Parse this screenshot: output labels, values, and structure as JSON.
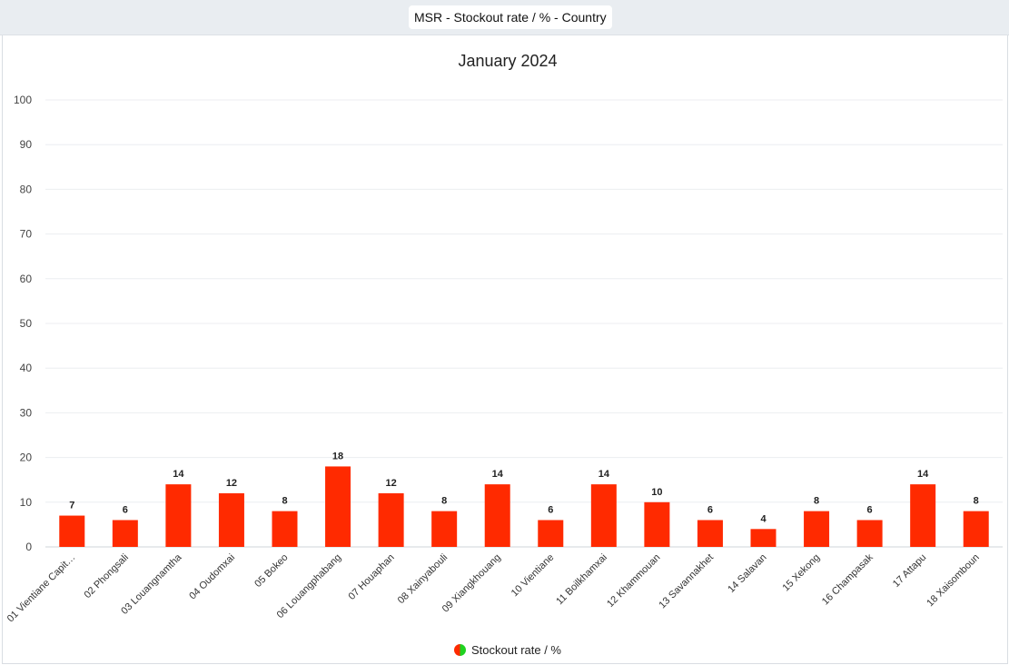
{
  "header": {
    "title": "MSR - Stockout rate / % - Country"
  },
  "legend": {
    "label": "Stockout rate / %"
  },
  "chart_data": {
    "type": "bar",
    "title": "January 2024",
    "xlabel": "",
    "ylabel": "",
    "ylim": [
      0,
      100
    ],
    "yticks": [
      0,
      10,
      20,
      30,
      40,
      50,
      60,
      70,
      80,
      90,
      100
    ],
    "grid": true,
    "legend_position": "bottom",
    "bar_color": "#ff2a00",
    "categories": [
      "01 Vientiane Capit…",
      "02 Phongsali",
      "03 Louangnamtha",
      "04 Oudomxai",
      "05 Bokeo",
      "06 Louangphabang",
      "07 Houaphan",
      "08 Xainyabouli",
      "09 Xiangkhouang",
      "10 Vientiane",
      "11 Boilkhamxai",
      "12 Khammouan",
      "13 Savannakhet",
      "14 Salavan",
      "15 Xekong",
      "16 Champasak",
      "17 Attapu",
      "18 Xaisomboun"
    ],
    "series": [
      {
        "name": "Stockout rate / %",
        "values": [
          7,
          6,
          14,
          12,
          8,
          18,
          12,
          8,
          14,
          6,
          14,
          10,
          6,
          4,
          8,
          6,
          14,
          8
        ]
      }
    ]
  }
}
